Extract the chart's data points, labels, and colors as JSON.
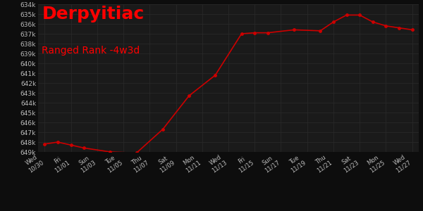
{
  "title": "Derpyitiac",
  "subtitle": "Ranged Rank -4w3d",
  "title_color": "#ff0000",
  "subtitle_color": "#ff0000",
  "bg_color": "#0d0d0d",
  "plot_bg_color": "#1a1a1a",
  "grid_color": "#2a2a2a",
  "line_color": "#cc0000",
  "text_color": "#bbbbbb",
  "x_labels": [
    "Wed\n10/30",
    "Fri\n11/01",
    "Sun\n11/03",
    "Tue\n11/05",
    "Thu\n11/07",
    "Sat\n11/09",
    "Mon\n11/11",
    "Wed\n11/13",
    "Fri\n11/15",
    "Sun\n11/17",
    "Tue\n11/19",
    "Thu\n11/21",
    "Sat\n11/23",
    "Mon\n11/25",
    "Wed\n11/27"
  ],
  "x_tick_positions": [
    0,
    2,
    4,
    6,
    8,
    10,
    12,
    14,
    16,
    18,
    20,
    22,
    24,
    26,
    28
  ],
  "data_x": [
    0,
    1,
    2,
    3,
    5,
    7,
    9,
    11,
    13,
    15,
    16,
    17,
    19,
    21,
    22,
    23,
    24,
    25,
    26,
    27,
    28
  ],
  "data_y": [
    648200,
    648000,
    648300,
    648600,
    649000,
    649100,
    646700,
    643300,
    641200,
    637000,
    636900,
    636900,
    636600,
    636700,
    635800,
    635100,
    635100,
    635800,
    636200,
    636400,
    636600
  ],
  "ylim_min": 634000,
  "ylim_max": 649000,
  "ytick_step": 1000,
  "marker_size": 2.5,
  "line_width": 1.2,
  "title_fontsize": 18,
  "subtitle_fontsize": 10,
  "tick_fontsize": 6.5,
  "xlabel_fontsize": 6
}
